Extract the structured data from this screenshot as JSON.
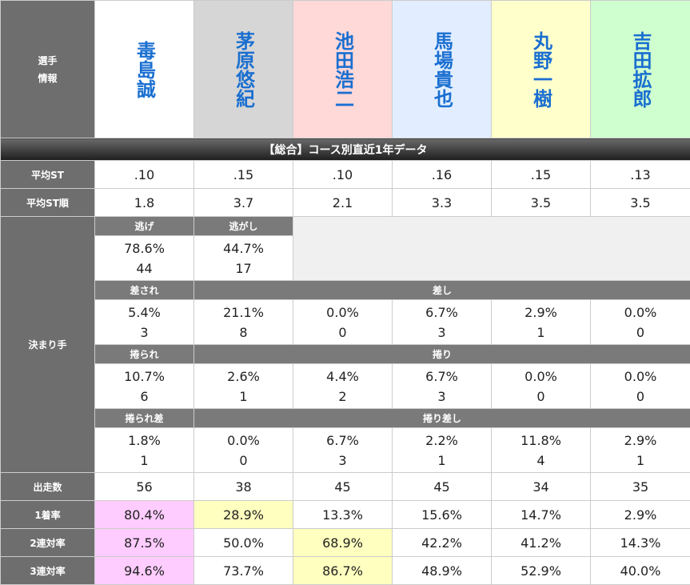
{
  "header_label": "選手\n情報",
  "racers": [
    {
      "name": "毒島誠",
      "color": "#ffffff"
    },
    {
      "name": "茅原悠紀",
      "color": "#d6d6d6"
    },
    {
      "name": "池田浩二",
      "color": "#ffd8d8"
    },
    {
      "name": "馬場貴也",
      "color": "#e2eeff"
    },
    {
      "name": "丸野一樹",
      "color": "#ffffcc"
    },
    {
      "name": "吉田拡郎",
      "color": "#cfffcf"
    }
  ],
  "section_title": "【総合】コース別直近1年データ",
  "avg_st": {
    "label": "平均ST",
    "values": [
      ".10",
      ".15",
      ".10",
      ".16",
      ".15",
      ".13"
    ]
  },
  "avg_st_rank": {
    "label": "平均ST順",
    "values": [
      "1.8",
      "3.7",
      "2.1",
      "3.3",
      "3.5",
      "3.5"
    ]
  },
  "kimarite": {
    "label": "決まり手",
    "nige_label": "逃げ",
    "nigashi_label": "逃がし",
    "nige": {
      "pct": "78.6%",
      "count": "44"
    },
    "nigashi": {
      "pct": "44.7%",
      "count": "17"
    },
    "sasare_label": "差され",
    "sashi_label": "差し",
    "row2": [
      {
        "pct": "5.4%",
        "count": "3"
      },
      {
        "pct": "21.1%",
        "count": "8"
      },
      {
        "pct": "0.0%",
        "count": "0"
      },
      {
        "pct": "6.7%",
        "count": "3"
      },
      {
        "pct": "2.9%",
        "count": "1"
      },
      {
        "pct": "0.0%",
        "count": "0"
      }
    ],
    "makurare_label": "捲られ",
    "makuri_label": "捲り",
    "row3": [
      {
        "pct": "10.7%",
        "count": "6"
      },
      {
        "pct": "2.6%",
        "count": "1"
      },
      {
        "pct": "4.4%",
        "count": "2"
      },
      {
        "pct": "6.7%",
        "count": "3"
      },
      {
        "pct": "0.0%",
        "count": "0"
      },
      {
        "pct": "0.0%",
        "count": "0"
      }
    ],
    "makurare_sa_label": "捲られ差",
    "makuri_sashi_label": "捲り差し",
    "row4": [
      {
        "pct": "1.8%",
        "count": "1"
      },
      {
        "pct": "0.0%",
        "count": "0"
      },
      {
        "pct": "6.7%",
        "count": "3"
      },
      {
        "pct": "2.2%",
        "count": "1"
      },
      {
        "pct": "11.8%",
        "count": "4"
      },
      {
        "pct": "2.9%",
        "count": "1"
      }
    ]
  },
  "starts": {
    "label": "出走数",
    "values": [
      "56",
      "38",
      "45",
      "45",
      "34",
      "35"
    ]
  },
  "win_rate": {
    "label": "1着率",
    "values": [
      "80.4%",
      "28.9%",
      "13.3%",
      "15.6%",
      "14.7%",
      "2.9%"
    ]
  },
  "quinella_rate": {
    "label": "2連対率",
    "values": [
      "87.5%",
      "50.0%",
      "68.9%",
      "42.2%",
      "41.2%",
      "14.3%"
    ]
  },
  "trio_rate": {
    "label": "3連対率",
    "values": [
      "94.6%",
      "73.7%",
      "86.7%",
      "48.9%",
      "52.9%",
      "40.0%"
    ]
  },
  "highlight_colors": {
    "first": "#ffccff",
    "second": "#ffffbf"
  }
}
